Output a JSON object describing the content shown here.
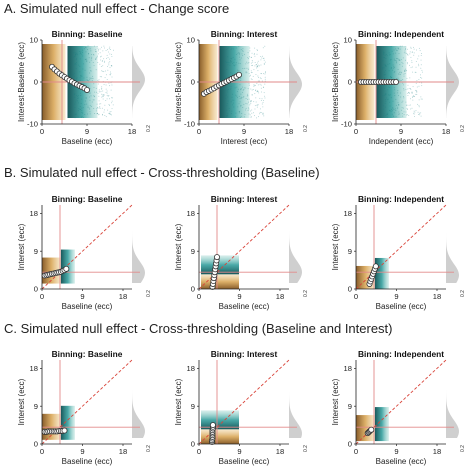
{
  "sections": [
    {
      "title": "A. Simulated null effect - Change score",
      "chart_data": [
        {
          "type": "scatter",
          "title": "Binning: Baseline",
          "xlabel": "Baseline (ecc)",
          "ylabel": "Interest-Baseline (ecc)",
          "xticks": [
            "0",
            "9",
            "18"
          ],
          "yticks": [
            "-10",
            "0",
            "10"
          ],
          "xlim": [
            0,
            18
          ],
          "ylim": [
            -10,
            10
          ],
          "density_tick": "0.2",
          "marker_points": {
            "x": [
              2.0,
              2.5,
              3.0,
              3.5,
              4.0,
              4.5,
              5.0,
              5.5,
              6.0,
              6.5,
              7.0,
              7.5,
              8.0,
              8.5,
              9.0
            ],
            "y": [
              3.6,
              3.0,
              2.5,
              2.0,
              1.6,
              1.2,
              0.8,
              0.4,
              0.1,
              -0.3,
              -0.6,
              -0.9,
              -1.2,
              -1.5,
              -1.9
            ]
          },
          "reference_lines": {
            "vertical_x": 4,
            "horizontal_y": 0
          }
        },
        {
          "type": "scatter",
          "title": "Binning: Interest",
          "xlabel": "Interest (ecc)",
          "ylabel": "Interest-Baseline (ecc)",
          "xticks": [
            "0",
            "9",
            "18"
          ],
          "yticks": [
            "-10",
            "0",
            "10"
          ],
          "xlim": [
            0,
            18
          ],
          "ylim": [
            -10,
            10
          ],
          "density_tick": "0.2",
          "marker_points": {
            "x": [
              1.0,
              1.5,
              2.0,
              2.5,
              3.0,
              3.5,
              4.0,
              4.5,
              5.0,
              5.5,
              6.0,
              6.5,
              7.0,
              7.5,
              8.0
            ],
            "y": [
              -2.8,
              -2.4,
              -2.1,
              -1.8,
              -1.5,
              -1.1,
              -0.8,
              -0.5,
              -0.2,
              0.1,
              0.4,
              0.7,
              1.0,
              1.3,
              1.7
            ]
          },
          "reference_lines": {
            "vertical_x": 4,
            "horizontal_y": 0
          }
        },
        {
          "type": "scatter",
          "title": "Binning: Independent",
          "xlabel": "Independent (ecc)",
          "ylabel": "Interest-Baseline (ecc)",
          "xticks": [
            "0",
            "9",
            "18"
          ],
          "yticks": [
            "-10",
            "0",
            "10"
          ],
          "xlim": [
            0,
            18
          ],
          "ylim": [
            -10,
            10
          ],
          "density_tick": "0.2",
          "marker_points": {
            "x": [
              1.0,
              1.5,
              2.0,
              2.5,
              3.0,
              3.5,
              4.0,
              4.5,
              5.0,
              5.5,
              6.0,
              6.5,
              7.0,
              7.5,
              8.0
            ],
            "y": [
              0,
              0,
              0,
              0,
              0,
              0,
              0,
              0,
              0,
              0,
              0,
              0,
              0,
              0,
              0
            ]
          },
          "reference_lines": {
            "vertical_x": 4,
            "horizontal_y": 0
          }
        }
      ]
    },
    {
      "title": "B. Simulated null effect - Cross-thresholding (Baseline)",
      "chart_data": [
        {
          "type": "scatter",
          "title": "Binning: Baseline",
          "xlabel": "Baseline (ecc)",
          "ylabel": "Interest (ecc)",
          "xticks": [
            "0",
            "9",
            "18"
          ],
          "yticks": [
            "0",
            "9",
            "18"
          ],
          "xlim": [
            0,
            20
          ],
          "ylim": [
            0,
            20
          ],
          "density_tick": "0.2",
          "marker_points": {
            "x": [
              0.6,
              1.0,
              1.4,
              1.8,
              2.2,
              2.6,
              3.0,
              3.4,
              3.8,
              4.2,
              4.6,
              5.0,
              5.4
            ],
            "y": [
              3.2,
              3.3,
              3.4,
              3.5,
              3.6,
              3.7,
              3.8,
              3.9,
              4.0,
              4.1,
              4.3,
              4.5,
              4.8
            ]
          },
          "reference_lines": {
            "vertical_x": 4,
            "horizontal_y": 4,
            "identity": true
          }
        },
        {
          "type": "scatter",
          "title": "Binning: Interest",
          "xlabel": "Baseline (ecc)",
          "ylabel": "Interest (ecc)",
          "xticks": [
            "0",
            "9",
            "18"
          ],
          "yticks": [
            "0",
            "9",
            "18"
          ],
          "xlim": [
            0,
            20
          ],
          "ylim": [
            0,
            20
          ],
          "density_tick": "0.2",
          "marker_points": {
            "x": [
              3.0,
              3.1,
              3.2,
              3.3,
              3.4,
              3.5,
              3.6,
              3.7,
              3.8,
              3.9,
              4.0
            ],
            "y": [
              0.5,
              1.2,
              1.9,
              2.6,
              3.3,
              4.0,
              4.7,
              5.4,
              6.1,
              6.8,
              7.6
            ]
          },
          "reference_lines": {
            "vertical_x": 4,
            "horizontal_y": 4,
            "identity": true
          }
        },
        {
          "type": "scatter",
          "title": "Binning: Independent",
          "xlabel": "Baseline (ecc)",
          "ylabel": "Interest (ecc)",
          "xticks": [
            "0",
            "9",
            "18"
          ],
          "yticks": [
            "0",
            "9",
            "18"
          ],
          "xlim": [
            0,
            20
          ],
          "ylim": [
            0,
            20
          ],
          "density_tick": "0.2",
          "marker_points": {
            "x": [
              3.0,
              3.2,
              3.4,
              3.6,
              3.8,
              4.0,
              4.2,
              4.4
            ],
            "y": [
              1.2,
              1.8,
              2.4,
              3.0,
              3.6,
              4.2,
              4.8,
              5.4
            ]
          },
          "reference_lines": {
            "vertical_x": 4,
            "horizontal_y": 4,
            "identity": true
          }
        }
      ]
    },
    {
      "title": "C. Simulated null effect - Cross-thresholding (Baseline and Interest)",
      "chart_data": [
        {
          "type": "scatter",
          "title": "Binning: Baseline",
          "xlabel": "Baseline (ecc)",
          "ylabel": "Interest (ecc)",
          "xticks": [
            "0",
            "9",
            "18"
          ],
          "yticks": [
            "0",
            "9",
            "18"
          ],
          "xlim": [
            0,
            20
          ],
          "ylim": [
            0,
            20
          ],
          "density_tick": "0.2",
          "marker_points": {
            "x": [
              0.6,
              1.0,
              1.4,
              1.8,
              2.2,
              2.6,
              3.0,
              3.4,
              3.8,
              4.2,
              4.6,
              5.0
            ],
            "y": [
              2.9,
              2.9,
              3.0,
              3.0,
              3.0,
              3.0,
              3.0,
              3.0,
              3.1,
              3.1,
              3.1,
              3.2
            ]
          },
          "reference_lines": {
            "vertical_x": 4,
            "horizontal_y": 4,
            "identity": true
          }
        },
        {
          "type": "scatter",
          "title": "Binning: Interest",
          "xlabel": "Baseline (ecc)",
          "ylabel": "Interest (ecc)",
          "xticks": [
            "0",
            "9",
            "18"
          ],
          "yticks": [
            "0",
            "9",
            "18"
          ],
          "xlim": [
            0,
            20
          ],
          "ylim": [
            0,
            20
          ],
          "density_tick": "0.2",
          "marker_points": {
            "x": [
              2.9,
              2.9,
              3.0,
              3.0,
              3.0,
              3.0,
              3.0,
              3.0,
              3.1,
              3.1,
              3.1
            ],
            "y": [
              0.5,
              0.9,
              1.3,
              1.7,
              2.1,
              2.5,
              2.9,
              3.3,
              3.7,
              4.1,
              4.5
            ]
          },
          "reference_lines": {
            "vertical_x": 4,
            "horizontal_y": 4,
            "identity": true
          }
        },
        {
          "type": "scatter",
          "title": "Binning: Independent",
          "xlabel": "Baseline (ecc)",
          "ylabel": "Interest (ecc)",
          "xticks": [
            "0",
            "9",
            "18"
          ],
          "yticks": [
            "0",
            "9",
            "18"
          ],
          "xlim": [
            0,
            20
          ],
          "ylim": [
            0,
            20
          ],
          "density_tick": "0.2",
          "marker_points": {
            "x": [
              2.6,
              2.8,
              3.0,
              3.2,
              3.4
            ],
            "y": [
              2.6,
              2.8,
              3.0,
              3.2,
              3.4
            ]
          },
          "reference_lines": {
            "vertical_x": 4,
            "horizontal_y": 4,
            "identity": true
          }
        }
      ]
    }
  ],
  "colors": {
    "orange": "#c78a2e",
    "teal": "#1b7f80",
    "reference": "#e28a8a",
    "identity": "#d9443a",
    "density": "#cfcfcf",
    "marker_fill": "#ffffff",
    "marker_stroke": "#333333"
  }
}
